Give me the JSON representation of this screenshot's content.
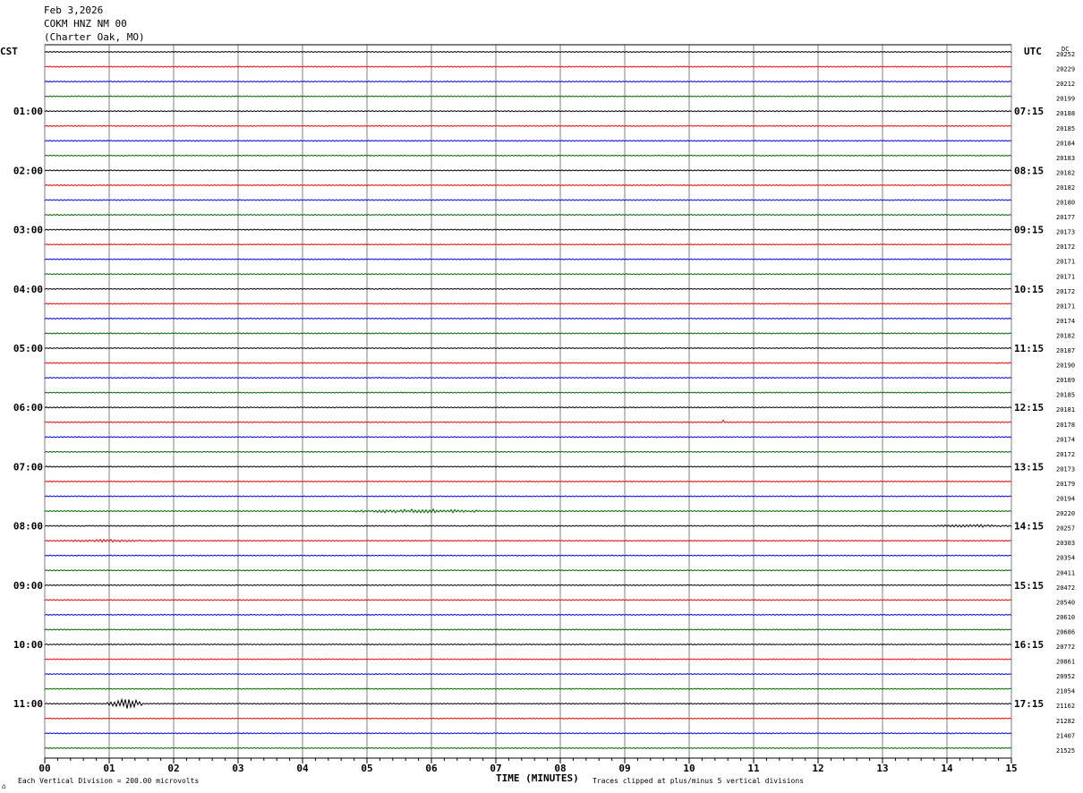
{
  "header": {
    "date": "Feb 3,2026",
    "station": "COKM HNZ NM 00",
    "location": "(Charter Oak, MO)"
  },
  "labels": {
    "left_zone": "CST",
    "right_zone": "UTC",
    "dc": "DC",
    "x_axis": "TIME (MINUTES)",
    "scale_note": "Each Vertical Division =  200.00 microvolts",
    "clip_note": "Traces clipped at plus/minus 5 vertical divisions",
    "corner_mark": "⌂"
  },
  "colors": {
    "trace_cycle": [
      "#000000",
      "#ff0000",
      "#0000ff",
      "#006400"
    ],
    "grid": "#808080",
    "frame": "#000000"
  },
  "chart_data": {
    "type": "line",
    "title": "",
    "xlabel": "TIME (MINUTES)",
    "ylabel": "",
    "xlim": [
      0,
      15
    ],
    "x_ticks": [
      "00",
      "01",
      "02",
      "03",
      "04",
      "05",
      "06",
      "07",
      "08",
      "09",
      "10",
      "11",
      "12",
      "13",
      "14",
      "15"
    ],
    "trace_minutes": 15,
    "grid": true,
    "left_hour_labels": [
      "01:00",
      "02:00",
      "03:00",
      "04:00",
      "05:00",
      "06:00",
      "07:00",
      "08:00",
      "09:00",
      "10:00",
      "11:00"
    ],
    "right_hour_labels": [
      "07:15",
      "08:15",
      "09:15",
      "10:15",
      "11:15",
      "12:15",
      "13:15",
      "14:15",
      "15:15",
      "16:15",
      "17:15"
    ],
    "dc_values": [
      "20252",
      "20229",
      "20212",
      "20199",
      "20188",
      "20185",
      "20184",
      "20183",
      "20182",
      "20182",
      "20180",
      "20177",
      "20173",
      "20172",
      "20171",
      "20171",
      "20172",
      "20171",
      "20174",
      "20182",
      "20187",
      "20190",
      "20189",
      "20185",
      "20181",
      "20178",
      "20174",
      "20172",
      "20173",
      "20179",
      "20194",
      "20220",
      "20257",
      "20303",
      "20354",
      "20411",
      "20472",
      "20540",
      "20610",
      "20686",
      "20772",
      "20861",
      "20952",
      "21054",
      "21162",
      "21282",
      "21407",
      "21525"
    ],
    "events": [
      {
        "trace": 44,
        "start_min": 0.95,
        "end_min": 1.5,
        "amplitude_div": 2.2
      },
      {
        "trace": 31,
        "start_min": 4.8,
        "end_min": 6.8,
        "amplitude_div": 0.9
      },
      {
        "trace": 33,
        "start_min": 0.0,
        "end_min": 1.9,
        "amplitude_div": 0.5
      },
      {
        "trace": 32,
        "start_min": 13.8,
        "end_min": 15.0,
        "amplitude_div": 0.6
      },
      {
        "trace": 25,
        "start_min": 10.5,
        "end_min": 10.55,
        "amplitude_div": 1.2
      },
      {
        "trace": 27,
        "start_min": 3.0,
        "end_min": 3.2,
        "amplitude_div": 0.4
      },
      {
        "trace": 26,
        "start_min": 4.9,
        "end_min": 5.1,
        "amplitude_div": 0.3
      },
      {
        "trace": 42,
        "start_min": 11.8,
        "end_min": 12.3,
        "amplitude_div": 0.3
      }
    ]
  }
}
